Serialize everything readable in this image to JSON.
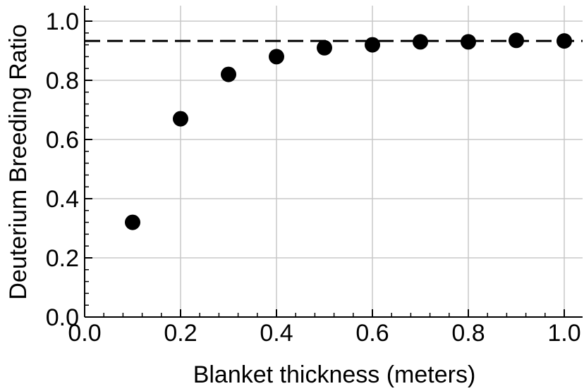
{
  "chart_data": {
    "type": "scatter",
    "title": "",
    "xlabel": "Blanket thickness (meters)",
    "ylabel": "Deuterium Breeding Ratio",
    "xlim": [
      0.0,
      1.05
    ],
    "ylim": [
      0.0,
      1.05
    ],
    "xticks": [
      0.0,
      0.2,
      0.4,
      0.6,
      0.8,
      1.0
    ],
    "yticks": [
      0.0,
      0.2,
      0.4,
      0.6,
      0.8,
      1.0
    ],
    "x_tick_labels": [
      "0.0",
      "0.2",
      "0.4",
      "0.6",
      "0.8",
      "1.0"
    ],
    "y_tick_labels": [
      "0.0",
      "0.2",
      "0.4",
      "0.6",
      "0.8",
      "1.0"
    ],
    "grid": true,
    "legend": "none",
    "series": [
      {
        "x": [
          0.1,
          0.2,
          0.3,
          0.4,
          0.5,
          0.6,
          0.7,
          0.8,
          0.9,
          1.0
        ],
        "y": [
          0.32,
          0.67,
          0.82,
          0.88,
          0.91,
          0.92,
          0.93,
          0.93,
          0.935,
          0.933
        ],
        "color": "#000000"
      }
    ],
    "reference_line": {
      "y": 0.933,
      "style": "dashed",
      "color": "#000000"
    }
  }
}
